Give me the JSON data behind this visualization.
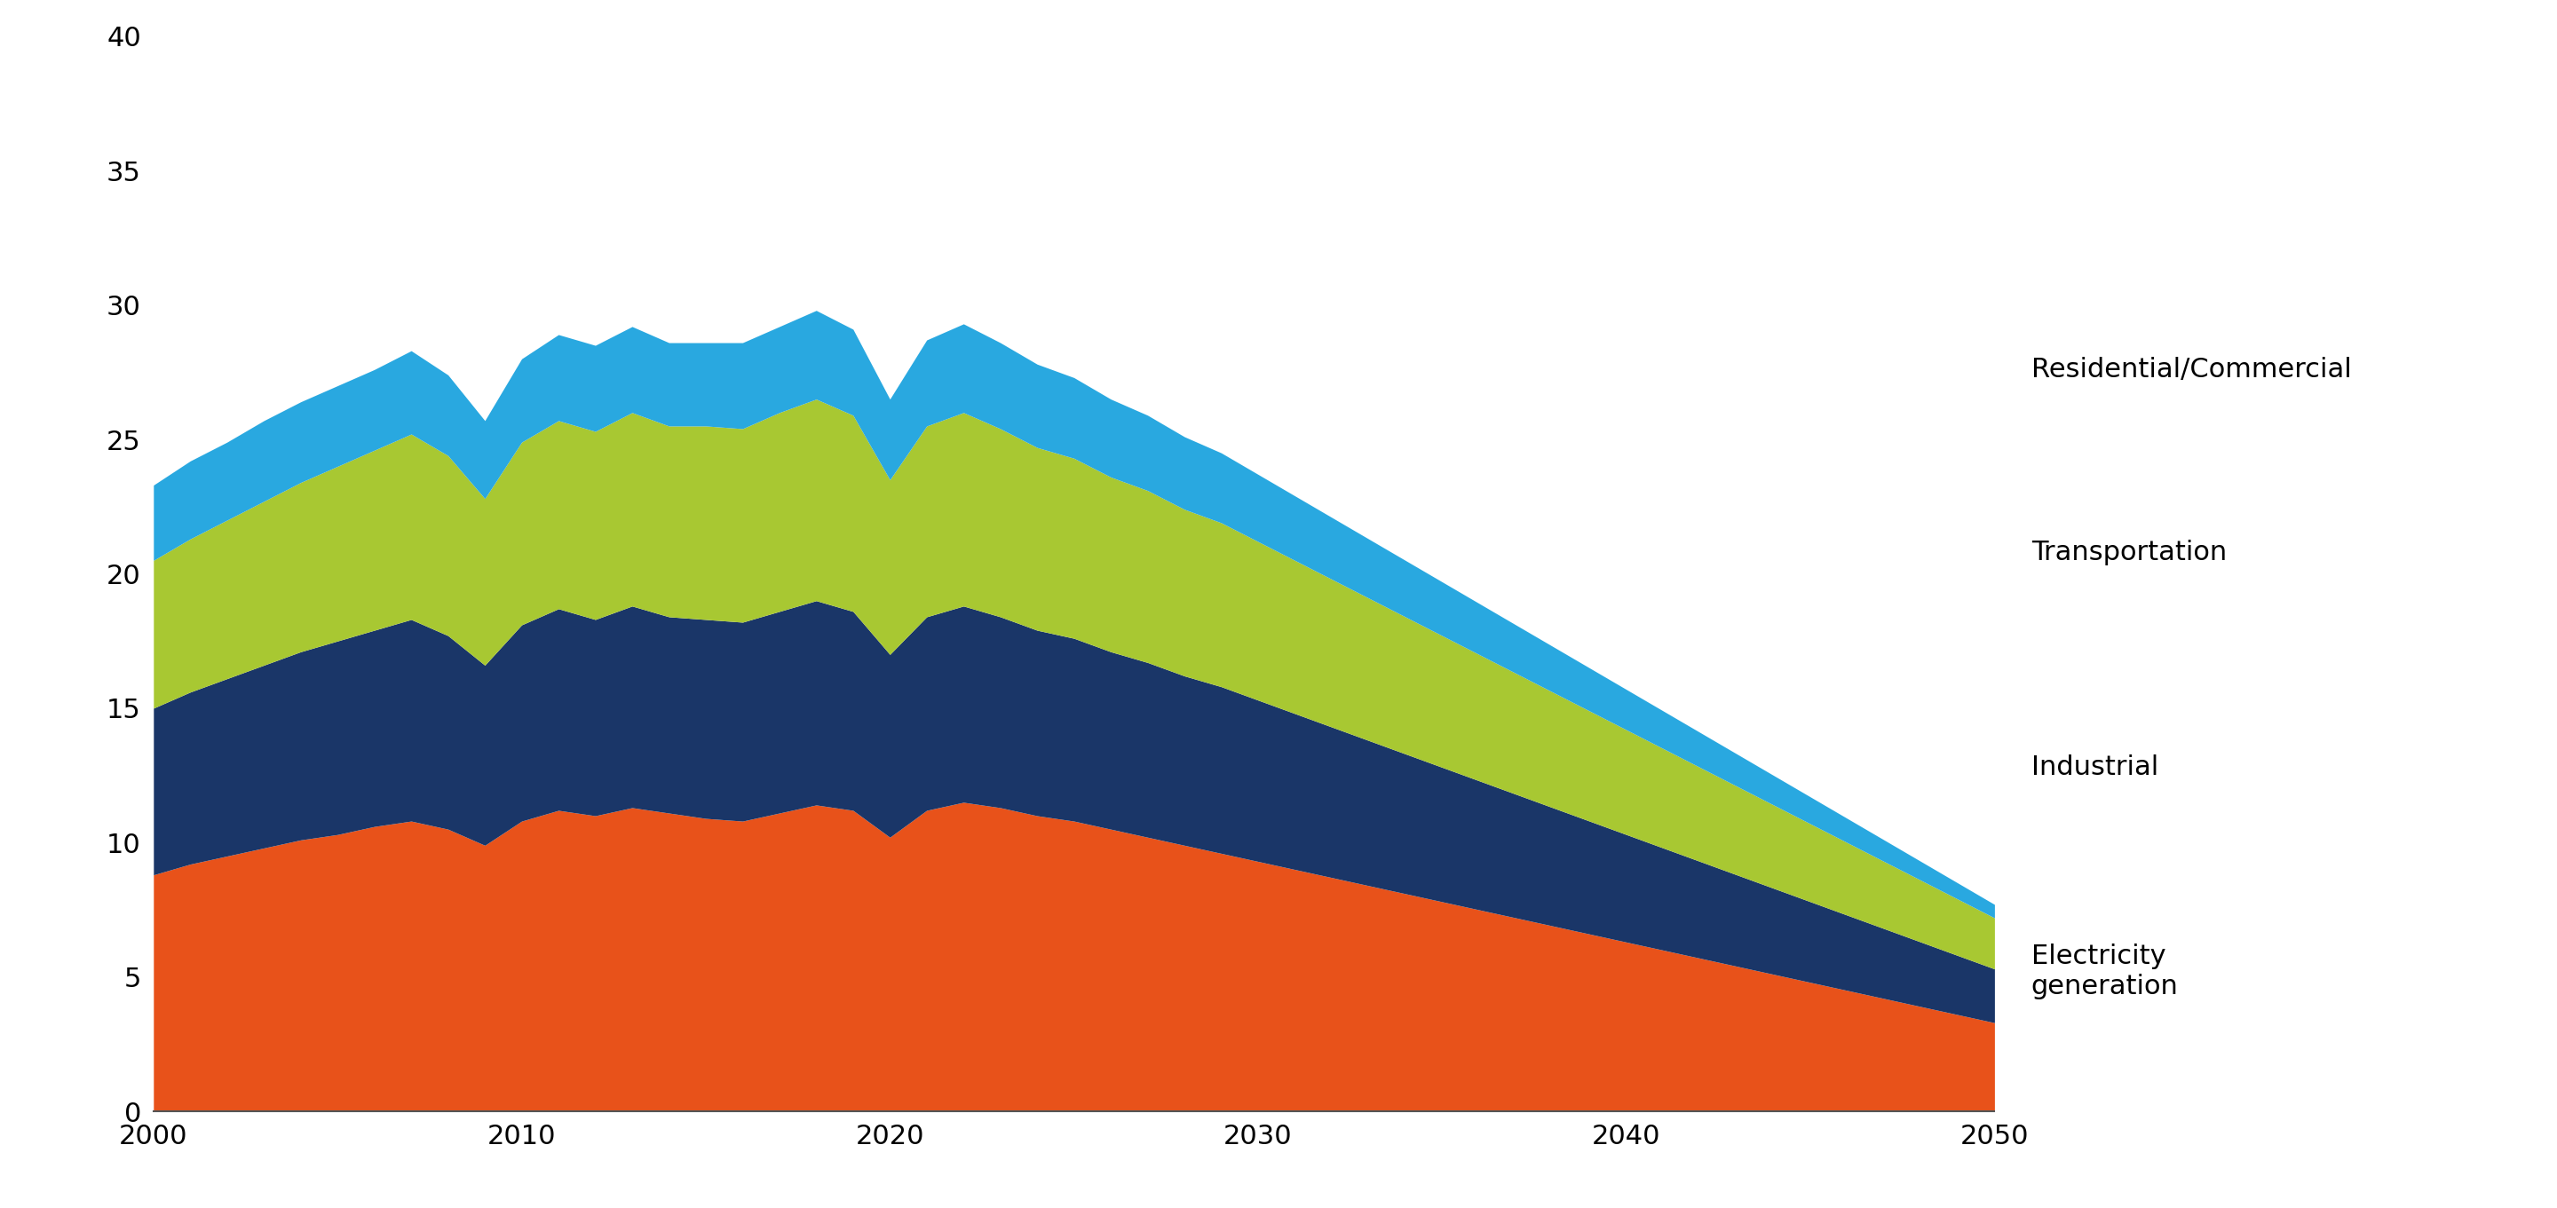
{
  "years": [
    2000,
    2001,
    2002,
    2003,
    2004,
    2005,
    2006,
    2007,
    2008,
    2009,
    2010,
    2011,
    2012,
    2013,
    2014,
    2015,
    2016,
    2017,
    2018,
    2019,
    2020,
    2021,
    2022,
    2023,
    2024,
    2025,
    2026,
    2027,
    2028,
    2029,
    2030,
    2031,
    2032,
    2033,
    2034,
    2035,
    2036,
    2037,
    2038,
    2039,
    2040,
    2041,
    2042,
    2043,
    2044,
    2045,
    2046,
    2047,
    2048,
    2049,
    2050
  ],
  "electricity": [
    8.8,
    9.2,
    9.5,
    9.8,
    10.1,
    10.3,
    10.6,
    10.8,
    10.5,
    9.9,
    10.8,
    11.2,
    11.0,
    11.3,
    11.1,
    10.9,
    10.8,
    11.1,
    11.4,
    11.2,
    10.2,
    11.2,
    11.5,
    11.3,
    11.0,
    10.8,
    10.5,
    10.2,
    9.9,
    9.6,
    9.3,
    9.0,
    8.7,
    8.4,
    8.1,
    7.8,
    7.5,
    7.2,
    6.9,
    6.6,
    6.3,
    6.0,
    5.7,
    5.4,
    5.1,
    4.8,
    4.5,
    4.2,
    3.9,
    3.6,
    3.3
  ],
  "industrial": [
    6.2,
    6.4,
    6.6,
    6.8,
    7.0,
    7.2,
    7.3,
    7.5,
    7.2,
    6.7,
    7.3,
    7.5,
    7.3,
    7.5,
    7.3,
    7.4,
    7.4,
    7.5,
    7.6,
    7.4,
    6.8,
    7.2,
    7.3,
    7.1,
    6.9,
    6.8,
    6.6,
    6.5,
    6.3,
    6.2,
    6.0,
    5.8,
    5.6,
    5.4,
    5.2,
    5.0,
    4.8,
    4.6,
    4.4,
    4.2,
    4.0,
    3.8,
    3.6,
    3.4,
    3.2,
    3.0,
    2.8,
    2.6,
    2.4,
    2.2,
    2.0
  ],
  "transportation": [
    5.5,
    5.7,
    5.9,
    6.1,
    6.3,
    6.5,
    6.7,
    6.9,
    6.7,
    6.2,
    6.8,
    7.0,
    7.0,
    7.2,
    7.1,
    7.2,
    7.2,
    7.4,
    7.5,
    7.3,
    6.5,
    7.1,
    7.2,
    7.0,
    6.8,
    6.7,
    6.5,
    6.4,
    6.2,
    6.1,
    5.9,
    5.7,
    5.5,
    5.3,
    5.1,
    4.9,
    4.7,
    4.5,
    4.3,
    4.1,
    3.9,
    3.7,
    3.5,
    3.3,
    3.1,
    2.9,
    2.7,
    2.5,
    2.3,
    2.1,
    1.9
  ],
  "residential": [
    2.8,
    2.9,
    2.9,
    3.0,
    3.0,
    3.0,
    3.0,
    3.1,
    3.0,
    2.9,
    3.1,
    3.2,
    3.2,
    3.2,
    3.1,
    3.1,
    3.2,
    3.2,
    3.3,
    3.2,
    3.0,
    3.2,
    3.3,
    3.2,
    3.1,
    3.0,
    2.9,
    2.8,
    2.7,
    2.6,
    2.5,
    2.4,
    2.3,
    2.2,
    2.1,
    2.0,
    1.9,
    1.8,
    1.7,
    1.6,
    1.5,
    1.4,
    1.3,
    1.2,
    1.1,
    1.0,
    0.9,
    0.8,
    0.7,
    0.6,
    0.5
  ],
  "colors": {
    "electricity": "#E8521A",
    "industrial": "#1A3668",
    "transportation": "#A8C832",
    "residential": "#29A8E0"
  },
  "ylim": [
    0,
    40
  ],
  "yticks": [
    0,
    5,
    10,
    15,
    20,
    25,
    30,
    35,
    40
  ],
  "xlim": [
    2000,
    2050
  ],
  "xticks": [
    2000,
    2010,
    2020,
    2030,
    2040,
    2050
  ],
  "background_color": "#ffffff",
  "tick_fontsize": 22,
  "legend_fontsize": 22
}
